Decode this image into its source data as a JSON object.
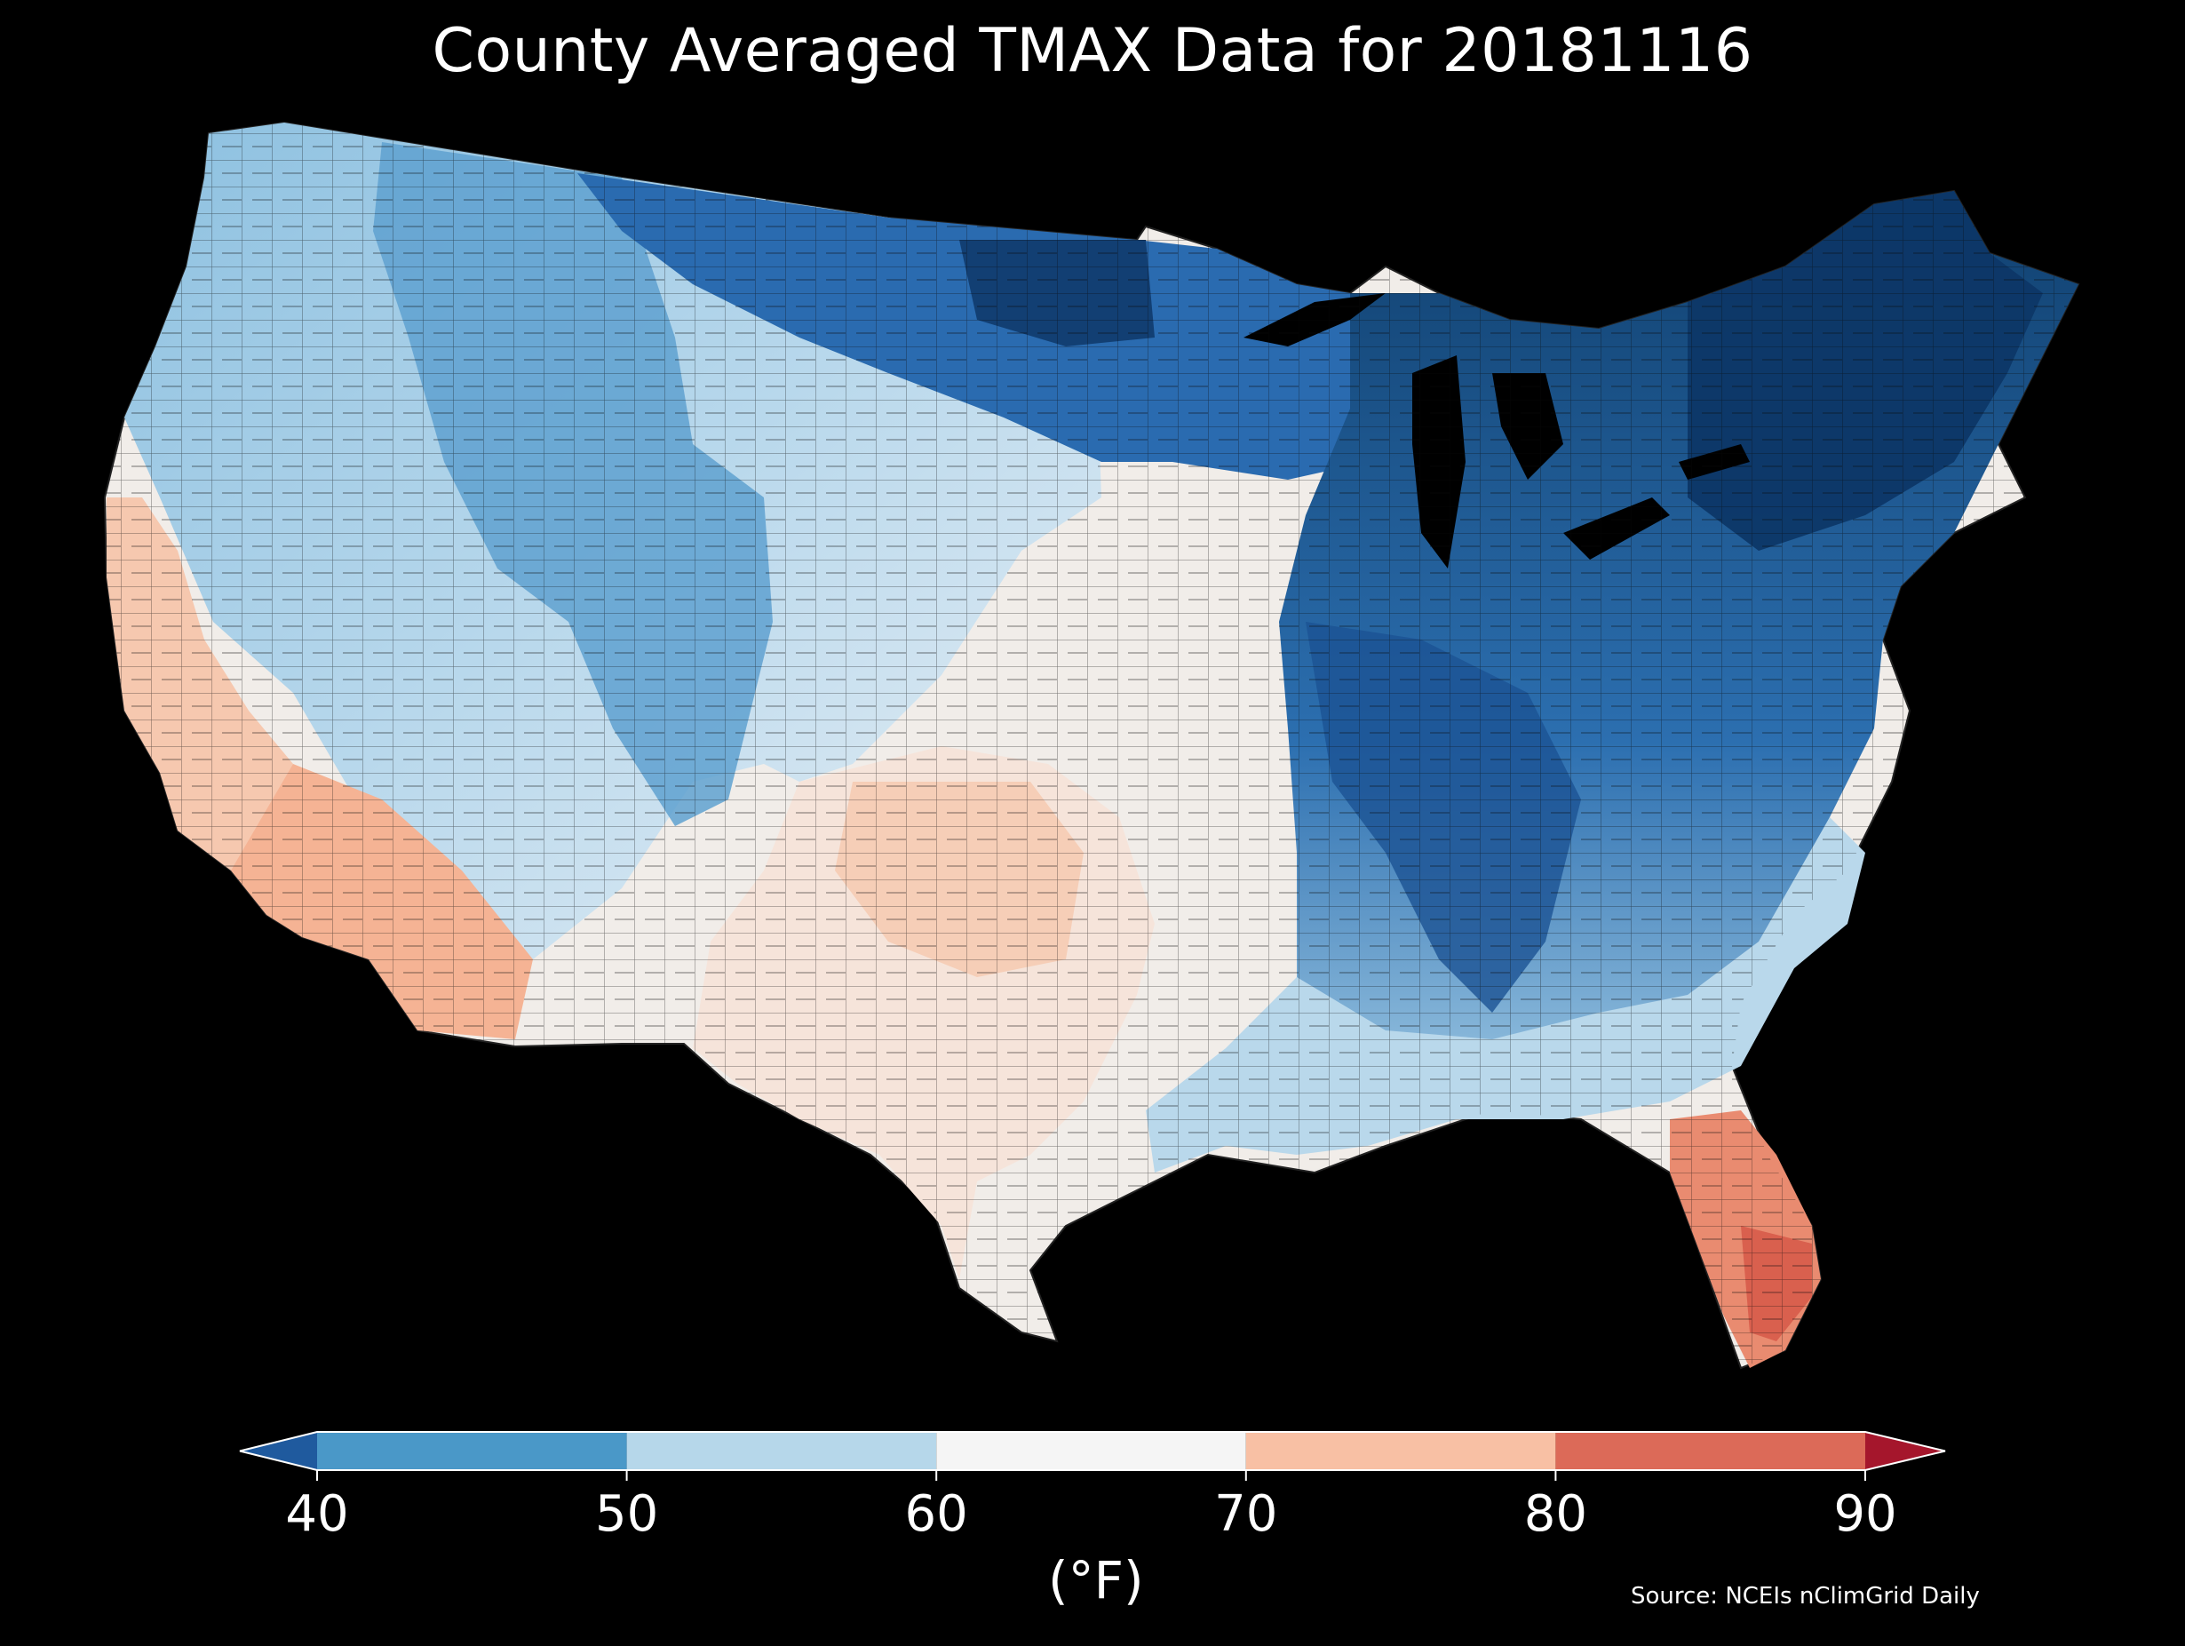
{
  "title": "County Averaged TMAX Data for 20181116",
  "colorbar": {
    "label": "(°F)",
    "ticks": [
      "40",
      "50",
      "60",
      "70",
      "80",
      "90"
    ],
    "bins": [
      {
        "range": "<40",
        "color": "#1f5a9e"
      },
      {
        "range": "40-50",
        "color": "#4a98c8"
      },
      {
        "range": "50-60",
        "color": "#b6d7ea"
      },
      {
        "range": "60-70",
        "color": "#f5f5f5"
      },
      {
        "range": "70-80",
        "color": "#f8c0a4"
      },
      {
        "range": "80-90",
        "color": "#dc6a58"
      },
      {
        "range": ">90",
        "color": "#a5162c"
      }
    ],
    "extend": "both"
  },
  "source": "Source: NCEIs nClimGrid Daily",
  "map": {
    "region": "Contiguous United States",
    "variable": "TMAX",
    "units": "°F",
    "aggregation": "county",
    "date": "20181116",
    "background": "#000000",
    "boundary_color": "#111111",
    "regions": [
      {
        "name": "northern-plains-minnesota",
        "color": "#1a5699"
      },
      {
        "name": "great-lakes-ohio-valley",
        "color": "#154a88"
      },
      {
        "name": "northeast-new-england",
        "color": "#0e3a6c"
      },
      {
        "name": "southeast-appalachians",
        "color": "#3d88c2"
      },
      {
        "name": "gulf-coast",
        "color": "#8fbfdf"
      },
      {
        "name": "rockies-great-basin",
        "color": "#6aaad4"
      },
      {
        "name": "southern-plains",
        "color": "#f3efec"
      },
      {
        "name": "west-texas-panhandle",
        "color": "#f7d5c3"
      },
      {
        "name": "california-coast",
        "color": "#f7cdb6"
      },
      {
        "name": "desert-southwest",
        "color": "#f5b495"
      },
      {
        "name": "south-florida",
        "color": "#e57b64"
      }
    ]
  }
}
